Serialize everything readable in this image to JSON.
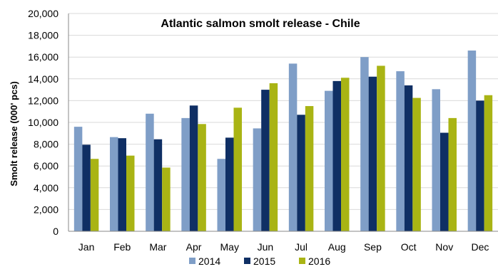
{
  "chart_data": {
    "type": "bar",
    "title": "Atlantic salmon smolt release - Chile",
    "xlabel": "",
    "ylabel": "Smolt release (000' pcs)",
    "ylim": [
      0,
      20000
    ],
    "yticks": [
      "0",
      "2,000",
      "4,000",
      "6,000",
      "8,000",
      "10,000",
      "12,000",
      "14,000",
      "16,000",
      "18,000",
      "20,000"
    ],
    "ytick_values": [
      0,
      2000,
      4000,
      6000,
      8000,
      10000,
      12000,
      14000,
      16000,
      18000,
      20000
    ],
    "grid": true,
    "legend_position": "bottom",
    "categories": [
      "Jan",
      "Feb",
      "Mar",
      "Apr",
      "May",
      "Jun",
      "Jul",
      "Aug",
      "Sep",
      "Oct",
      "Nov",
      "Dec"
    ],
    "series": [
      {
        "name": "2014",
        "color": "#7f9ec7",
        "values": [
          9600,
          8650,
          10800,
          10400,
          6650,
          9450,
          15400,
          12900,
          16000,
          14700,
          13050,
          16600
        ]
      },
      {
        "name": "2015",
        "color": "#0f2f64",
        "values": [
          7950,
          8550,
          8450,
          11550,
          8600,
          13000,
          10700,
          13800,
          14200,
          13400,
          9050,
          12000
        ]
      },
      {
        "name": "2016",
        "color": "#a9b414",
        "values": [
          6650,
          6950,
          5850,
          9850,
          11350,
          13600,
          11500,
          14100,
          15200,
          12250,
          10400,
          12500
        ]
      }
    ]
  }
}
